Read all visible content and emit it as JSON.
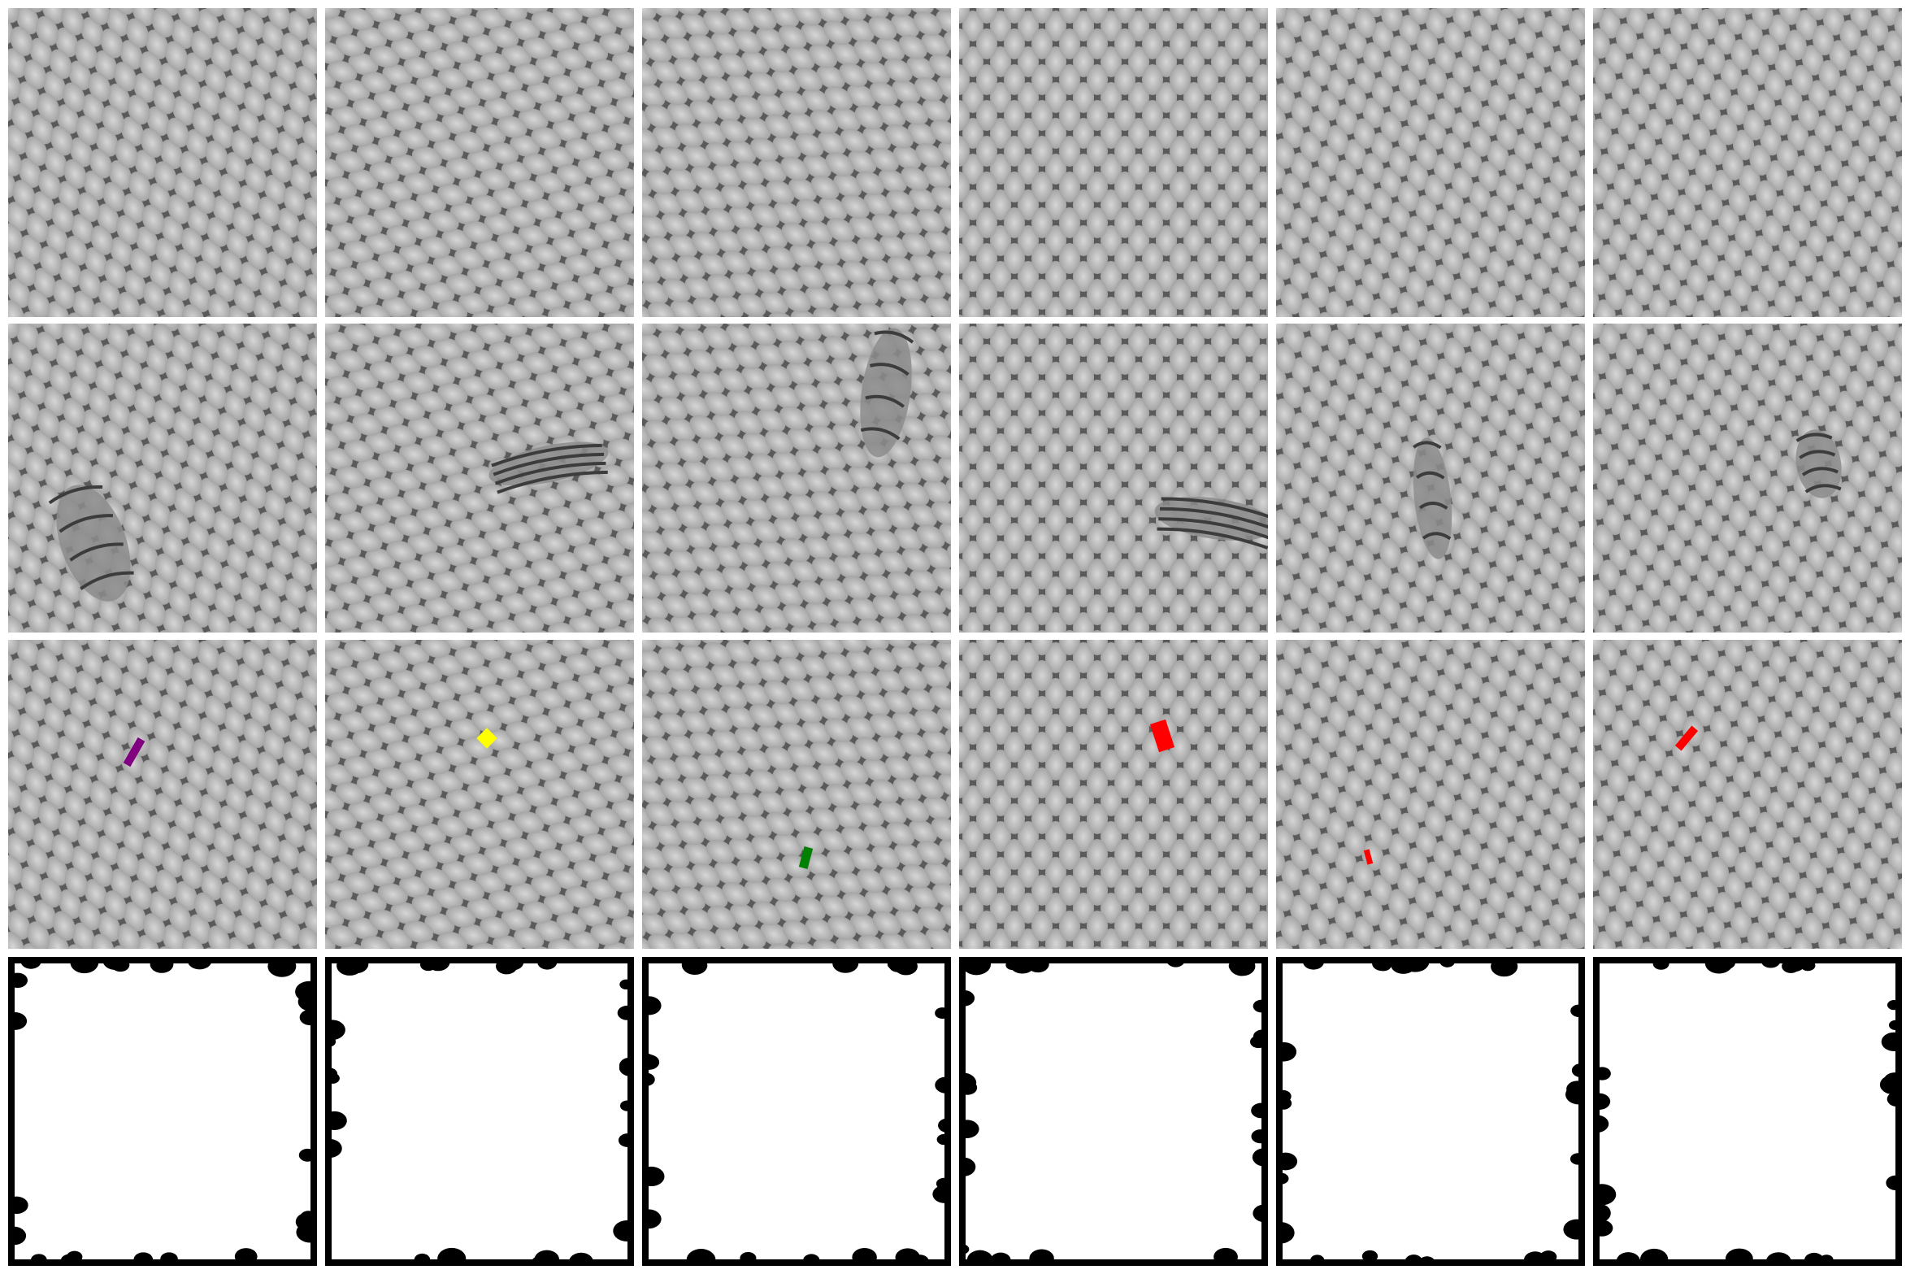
{
  "image": {
    "rows": [
      {
        "role": "original-texture",
        "count": 6
      },
      {
        "role": "texture-with-defect",
        "count": 6
      },
      {
        "role": "defect-marker-overlay",
        "count": 6
      },
      {
        "role": "binary-mask",
        "count": 6
      }
    ],
    "columns": [
      {
        "mesh_angle_deg": -22,
        "marker": {
          "shape": "bar",
          "color": "#800080"
        }
      },
      {
        "mesh_angle_deg": -72,
        "marker": {
          "shape": "diamond",
          "color": "#ffff00"
        }
      },
      {
        "mesh_angle_deg": -58,
        "marker": {
          "shape": "bar",
          "color": "#008000"
        }
      },
      {
        "mesh_angle_deg": 0,
        "marker": {
          "shape": "block",
          "color": "#ff0000"
        }
      },
      {
        "mesh_angle_deg": -14,
        "marker": {
          "shape": "small-bar",
          "color": "#ff0000"
        }
      },
      {
        "mesh_angle_deg": -10,
        "marker": {
          "shape": "bar",
          "color": "#ff0000"
        }
      }
    ],
    "colors": {
      "mesh_light": "#d6d6d6",
      "mesh_mid": "#9a9a9a",
      "mesh_dark": "#3c3c3c",
      "mask_fg": "#ffffff",
      "mask_bg": "#000000",
      "separator": "#ffffff"
    }
  }
}
